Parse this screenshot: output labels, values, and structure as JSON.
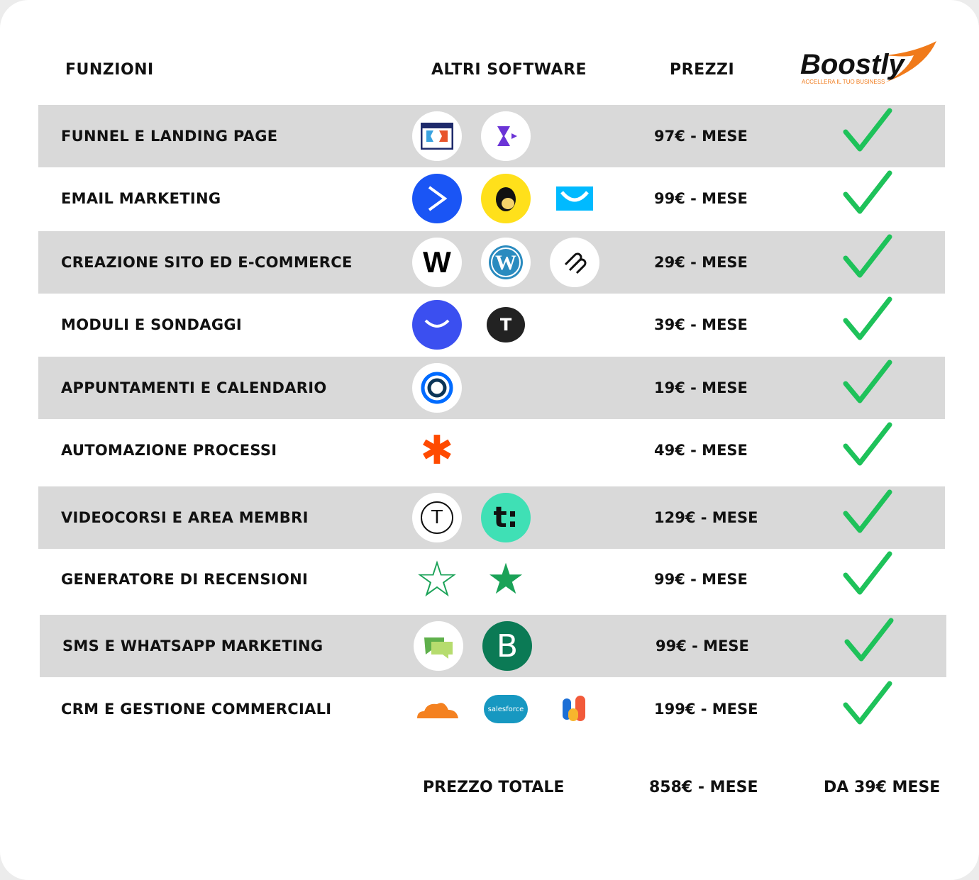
{
  "header": {
    "col_functions": "FUNZIONI",
    "col_software": "ALTRI SOFTWARE",
    "col_prices": "PREZZI",
    "brand": {
      "name": "Boostly",
      "tagline": "ACCELLERA IL TUO BUSINESS"
    }
  },
  "rows": [
    {
      "function": "FUNNEL E LANDING PAGE",
      "price": "97€ - MESE",
      "logos": [
        "clickfunnels-logo",
        "kartra-logo"
      ]
    },
    {
      "function": "EMAIL MARKETING",
      "price": "99€ - MESE",
      "logos": [
        "activecampaign-logo",
        "mailchimp-logo",
        "getresponse-logo"
      ]
    },
    {
      "function": "CREAZIONE SITO ED E-COMMERCE",
      "price": "29€ - MESE",
      "logos": [
        "wix-logo",
        "wordpress-logo",
        "squarespace-logo"
      ]
    },
    {
      "function": "MODULI E SONDAGGI",
      "price": "39€ - MESE",
      "logos": [
        "typeform-logo",
        "tally-logo"
      ]
    },
    {
      "function": "APPUNTAMENTI E CALENDARIO",
      "price": "19€ - MESE",
      "logos": [
        "calendly-logo"
      ]
    },
    {
      "function": "AUTOMAZIONE PROCESSI",
      "price": "49€ - MESE",
      "logos": [
        "zapier-logo"
      ]
    },
    {
      "function": "VIDEOCORSI E AREA MEMBRI",
      "price": "129€ - MESE",
      "logos": [
        "teachable-logo",
        "thinkific-logo"
      ]
    },
    {
      "function": "GENERATORE DI RECENSIONI",
      "price": "99€ - MESE",
      "logos": [
        "trustindex-logo",
        "trustpilot-logo"
      ]
    },
    {
      "function": "SMS E WHATSAPP MARKETING",
      "price": "99€ - MESE",
      "logos": [
        "sms-chat-logo",
        "brevo-logo"
      ]
    },
    {
      "function": "CRM E GESTIONE COMMERCIALI",
      "price": "199€ - MESE",
      "logos": [
        "cloudflare-logo",
        "salesforce-logo",
        "customer-logo"
      ]
    }
  ],
  "logo_texts": {
    "salesforce": "salesforce"
  },
  "footer": {
    "total_label": "PREZZO TOTALE",
    "total_price": "858€ - MESE",
    "boostly_price": "DA 39€ MESE"
  },
  "colors": {
    "row_gray": "#d9d9d9",
    "check_green": "#1ec25a",
    "brand_orange": "#f07a1a"
  }
}
